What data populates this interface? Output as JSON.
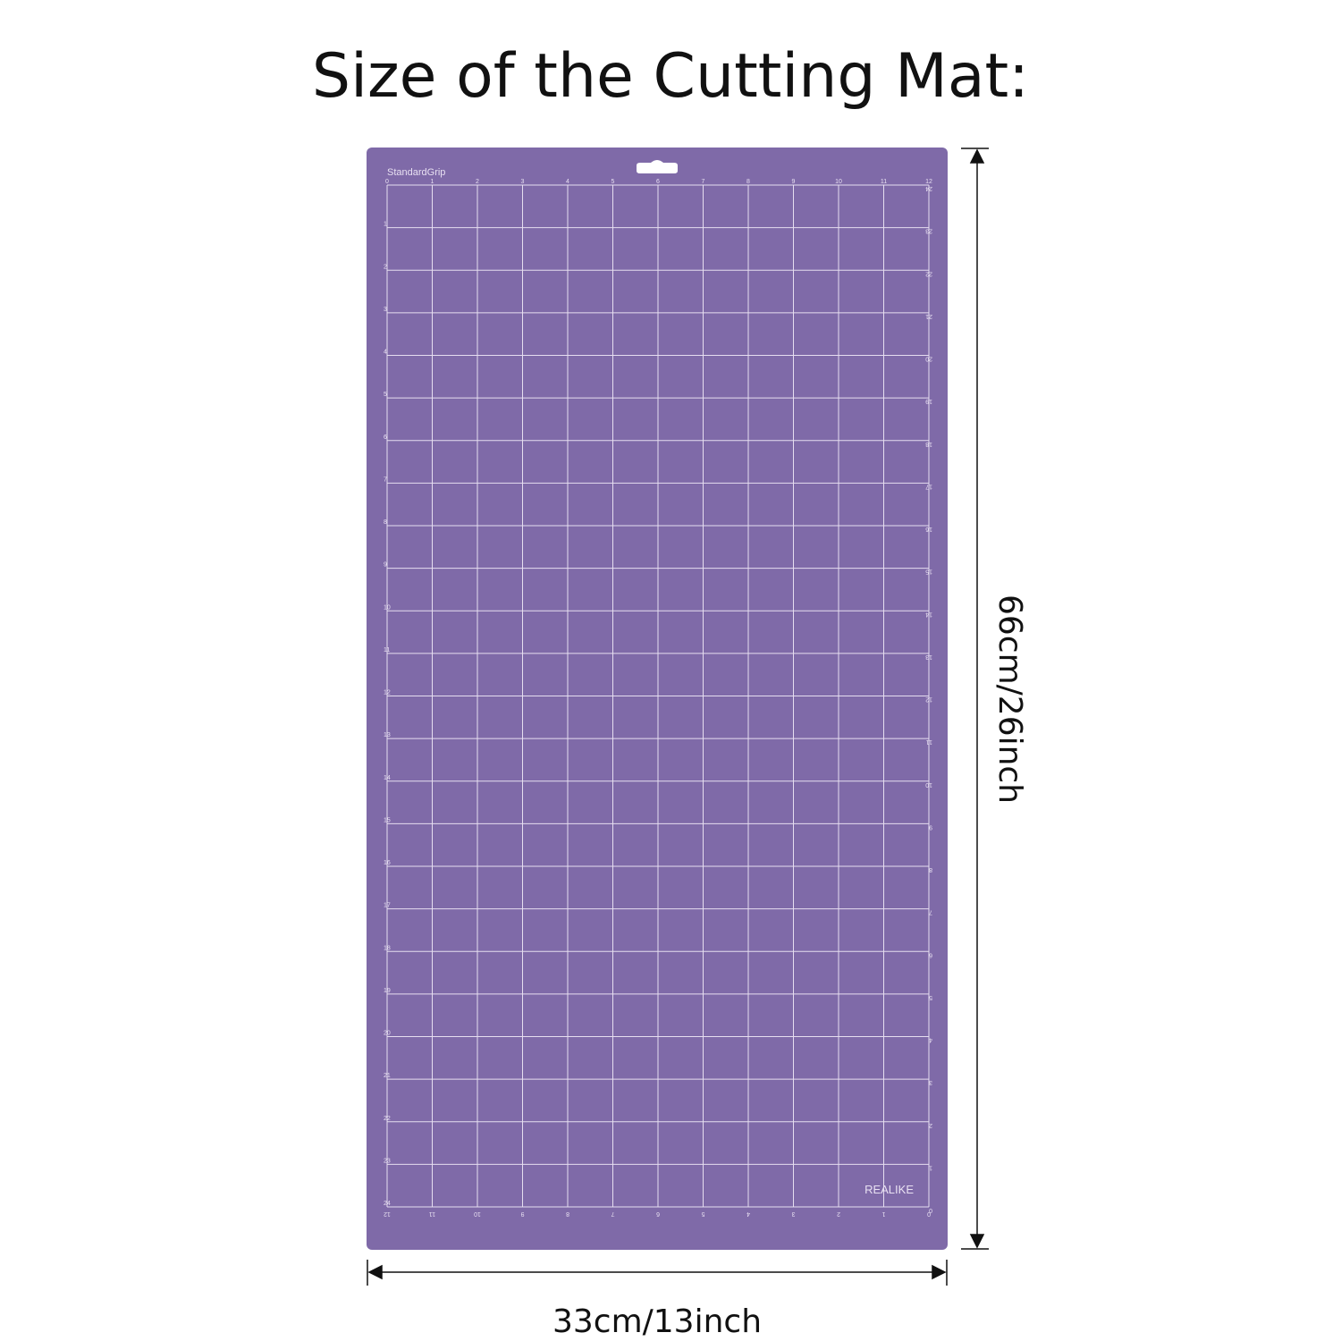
{
  "header": {
    "title": "Size of the Cutting Mat:"
  },
  "mat": {
    "grip_label": "StandardGrip",
    "brand": "REALIKE",
    "rulers": {
      "top": [
        0,
        1,
        2,
        3,
        4,
        5,
        6,
        7,
        8,
        9,
        10,
        11,
        12
      ],
      "left": [
        0,
        1,
        2,
        3,
        4,
        5,
        6,
        7,
        8,
        9,
        10,
        11,
        12,
        13,
        14,
        15,
        16,
        17,
        18,
        19,
        20,
        21,
        22,
        23,
        24
      ],
      "right": [
        24,
        23,
        22,
        21,
        20,
        19,
        18,
        17,
        16,
        15,
        14,
        13,
        12,
        11,
        10,
        9,
        8,
        7,
        6,
        5,
        4,
        3,
        2,
        1,
        0
      ],
      "bottom": [
        12,
        11,
        10,
        9,
        8,
        7,
        6,
        5,
        4,
        3,
        2,
        1,
        0
      ]
    }
  },
  "dimensions": {
    "height": "66cm/26inch",
    "width": "33cm/13inch"
  }
}
